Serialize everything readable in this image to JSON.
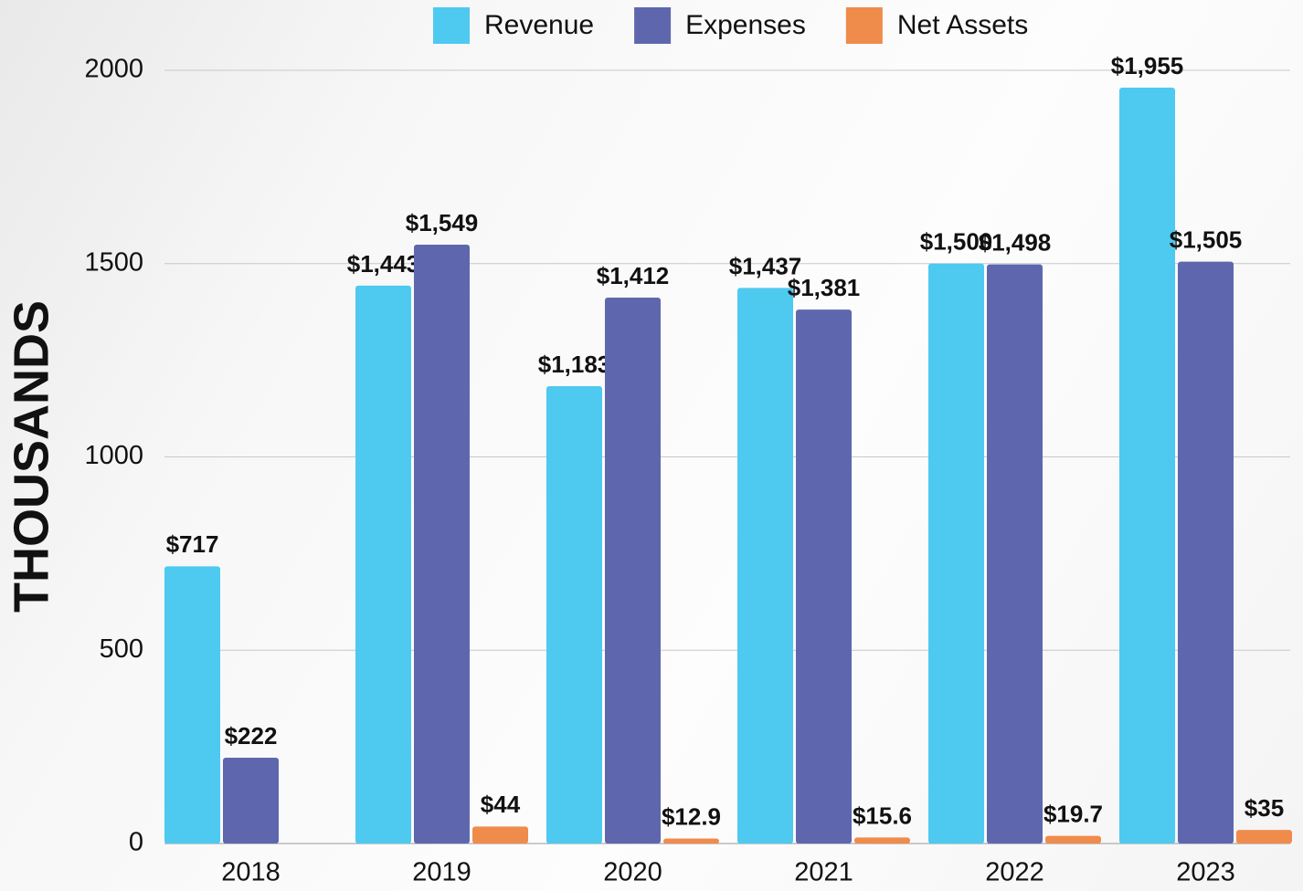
{
  "chart_data": {
    "type": "bar",
    "y_label": "THOUSANDS",
    "categories": [
      "2018",
      "2019",
      "2020",
      "2021",
      "2022",
      "2023"
    ],
    "series": [
      {
        "name": "Revenue",
        "color": "#4ec9f0",
        "values": [
          717,
          1443,
          1183,
          1437,
          1500,
          1955
        ],
        "value_labels": [
          "$717",
          "$1,443",
          "$1,183",
          "$1,437",
          "$1,500",
          "$1,955"
        ]
      },
      {
        "name": "Expenses",
        "color": "#5e67ae",
        "values": [
          222,
          1549,
          1412,
          1381,
          1498,
          1505
        ],
        "value_labels": [
          "$222",
          "$1,549",
          "$1,412",
          "$1,381",
          "$1,498",
          "$1,505"
        ]
      },
      {
        "name": "Net Assets",
        "color": "#ef8c4c",
        "values": [
          null,
          44,
          12.9,
          15.6,
          19.7,
          35
        ],
        "value_labels": [
          null,
          "$44",
          "$12.9",
          "$15.6",
          "$19.7",
          "$35"
        ]
      }
    ],
    "ylim": [
      0,
      2000
    ],
    "yticks": [
      0,
      500,
      1000,
      1500,
      2000
    ],
    "grid": true,
    "legend": "top"
  }
}
